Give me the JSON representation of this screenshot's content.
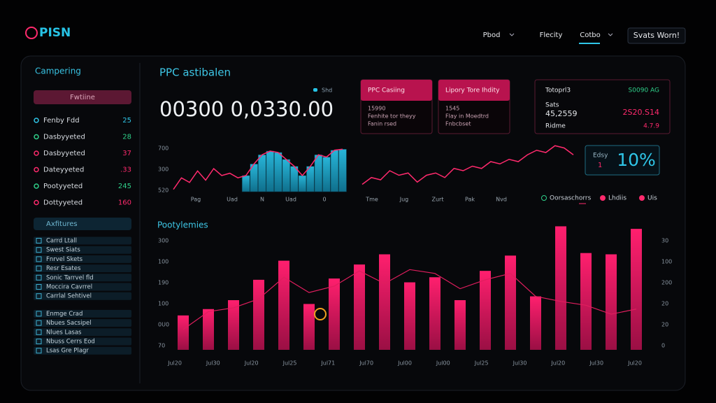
{
  "header": {
    "logo": "PISN",
    "nav": [
      "Pbod",
      "Flecity",
      "Cotbo"
    ],
    "action": "Svats Worn!"
  },
  "sidebar": {
    "title": "Campering",
    "button": "Fwtiine",
    "metrics": [
      {
        "label": "Fenby Fdd",
        "value": "25"
      },
      {
        "label": "Dasbyyeted",
        "value": "28"
      },
      {
        "label": "Dasbyyeted",
        "value": "37"
      },
      {
        "label": "Dateyyeted",
        "value": ".33"
      },
      {
        "label": "Pootyyeted",
        "value": "245"
      },
      {
        "label": "Dottyyeted",
        "value": "160"
      }
    ],
    "search": "Axfitures",
    "checks": [
      "Carrd Ltall",
      "Swest Siats",
      "Fnrvel Skets",
      "Resr Esates",
      "Sonic Tarrvel fld",
      "Moccira Cavrrel",
      "Carrlal Sehtivel",
      "Enmge Crad",
      "Nbues Sacsipel",
      "Nlues Lasas",
      "Nbuss Cerrs Eod",
      "Lsas Gre Plagr"
    ]
  },
  "main": {
    "title": "PPC astibalen",
    "legend": "Shd",
    "total": "00300 0,0330.00"
  },
  "line1": {
    "ylabels": [
      "700",
      "300",
      "520"
    ],
    "xlabels": [
      "Pag",
      "Uad",
      "N",
      "Uad",
      "0"
    ],
    "values": [
      5,
      30,
      20,
      45,
      25,
      50,
      35,
      40,
      30,
      35,
      60,
      80,
      88,
      85,
      70,
      55,
      35,
      55,
      80,
      75,
      90,
      92
    ],
    "bars": [
      null,
      null,
      null,
      null,
      null,
      null,
      null,
      null,
      null,
      35,
      60,
      80,
      88,
      85,
      70,
      55,
      35,
      55,
      80,
      75,
      90,
      92
    ]
  },
  "cards": [
    {
      "title": "PPC Casiing",
      "lines": [
        "15990",
        "Fenhite tor theyy",
        "Fanin rsed"
      ]
    },
    {
      "title": "Lipory Tore Ihdity",
      "lines": [
        "1545",
        "Flay in Moedtrd",
        "Fnbcbset"
      ]
    }
  ],
  "stats": {
    "left": [
      "Totoprl3",
      "Sats",
      "45,2559",
      "Ridme"
    ],
    "right": [
      "S0090 AG",
      "2S20.S14",
      "4.7.9"
    ]
  },
  "badge": {
    "label": "Edsy",
    "sub": "1",
    "value": "10%"
  },
  "line2": {
    "xlabels": [
      "Tme",
      "Jug",
      "Zurt",
      "Pak",
      "Nvd"
    ],
    "values": [
      10,
      25,
      20,
      40,
      30,
      35,
      15,
      30,
      35,
      25,
      45,
      40,
      50,
      45,
      60,
      55,
      65,
      60,
      75,
      85,
      80,
      95,
      90,
      75
    ]
  },
  "legend2": [
    "Oorsaschorrs",
    "Lhdiis",
    "Uis"
  ],
  "bars": {
    "title": "Pootylemies",
    "left_labels": [
      "300",
      "100",
      "190",
      "100",
      "0U0",
      "70"
    ],
    "right_labels": [
      "30",
      "100",
      "200",
      "20",
      "20",
      "0"
    ],
    "xlabels": [
      "Jul20",
      "Jul30",
      "Jul20",
      "Jul25",
      "Jul71",
      "Jul70",
      "Jul00",
      "Jul00",
      "Jul25",
      "Jul30",
      "Jul20",
      "Jul30",
      "Jul20"
    ],
    "values": [
      27,
      32,
      39,
      55,
      70,
      36,
      56,
      67,
      75,
      53,
      57,
      39,
      62,
      74,
      42,
      97,
      76,
      75,
      95
    ],
    "line": [
      16,
      30,
      33,
      40,
      57,
      45,
      50,
      62,
      52,
      63,
      60,
      48,
      55,
      60,
      42,
      38,
      35,
      28,
      32
    ]
  }
}
